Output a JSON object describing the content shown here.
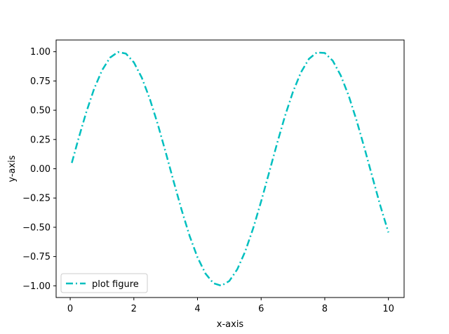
{
  "chart_data": {
    "type": "line",
    "title": "",
    "xlabel": "x-axis",
    "ylabel": "y-axis",
    "xlim": [
      -0.4425,
      10.4925
    ],
    "ylim": [
      -1.1,
      1.1
    ],
    "x_ticks": [
      0,
      2,
      4,
      6,
      8,
      10
    ],
    "x_tick_labels": [
      "0",
      "2",
      "4",
      "6",
      "8",
      "10"
    ],
    "y_ticks": [
      -1.0,
      -0.75,
      -0.5,
      -0.25,
      0.0,
      0.25,
      0.5,
      0.75,
      1.0
    ],
    "y_tick_labels": [
      "−1.00",
      "−0.75",
      "−0.50",
      "−0.25",
      "0.00",
      "0.25",
      "0.50",
      "0.75",
      "1.00"
    ],
    "grid": false,
    "legend_position": "lower-left",
    "series": [
      {
        "name": "plot figure",
        "color": "#00bfbf",
        "line_style": "dash-dot",
        "x": [
          0.05,
          0.25,
          0.5,
          0.75,
          1.0,
          1.25,
          1.5,
          1.75,
          2.0,
          2.25,
          2.5,
          2.75,
          3.0,
          3.25,
          3.5,
          3.75,
          4.0,
          4.25,
          4.5,
          4.75,
          5.0,
          5.25,
          5.5,
          5.75,
          6.0,
          6.25,
          6.5,
          6.75,
          7.0,
          7.25,
          7.5,
          7.75,
          8.0,
          8.25,
          8.5,
          8.75,
          9.0,
          9.25,
          9.5,
          9.75,
          10.0
        ],
        "y": [
          0.05,
          0.247,
          0.479,
          0.682,
          0.841,
          0.949,
          0.997,
          0.984,
          0.909,
          0.778,
          0.598,
          0.382,
          0.141,
          -0.108,
          -0.351,
          -0.572,
          -0.757,
          -0.895,
          -0.978,
          -0.999,
          -0.959,
          -0.859,
          -0.706,
          -0.508,
          -0.279,
          -0.033,
          0.215,
          0.451,
          0.657,
          0.823,
          0.938,
          0.994,
          0.989,
          0.923,
          0.798,
          0.625,
          0.412,
          0.174,
          -0.075,
          -0.32,
          -0.544
        ]
      }
    ]
  }
}
